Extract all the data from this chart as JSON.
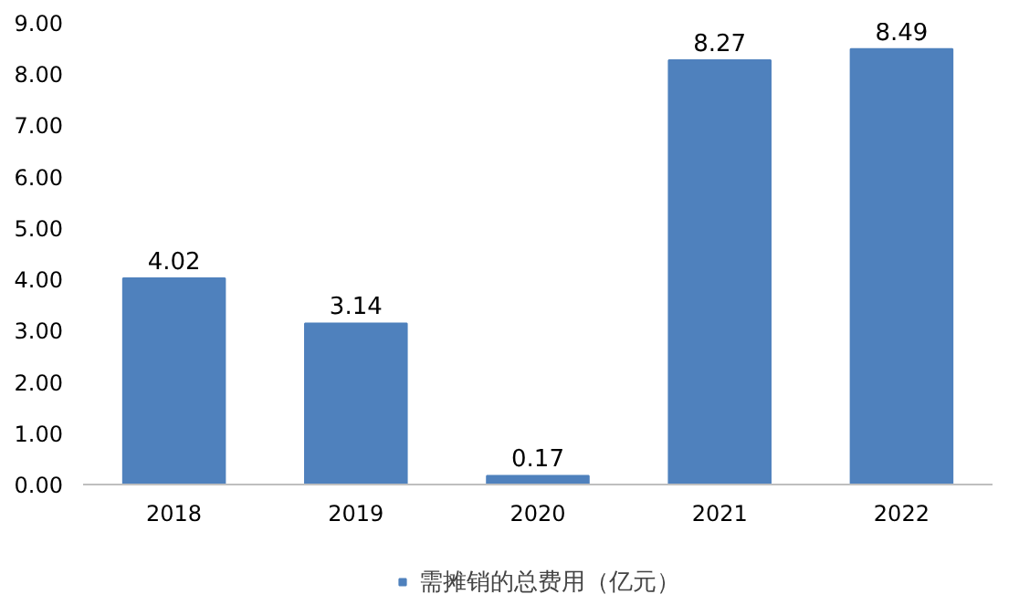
{
  "chart_data": {
    "type": "bar",
    "categories": [
      "2018",
      "2019",
      "2020",
      "2021",
      "2022"
    ],
    "series": [
      {
        "name": "需摊销的总费用（亿元）",
        "color": "#4f81bd",
        "values": [
          4.02,
          3.14,
          0.17,
          8.27,
          8.49
        ]
      }
    ],
    "ylim": [
      0,
      9
    ],
    "yticks": [
      {
        "value": 0,
        "label": "0.00"
      },
      {
        "value": 1,
        "label": "1.00"
      },
      {
        "value": 2,
        "label": "2.00"
      },
      {
        "value": 3,
        "label": "3.00"
      },
      {
        "value": 4,
        "label": "4.00"
      },
      {
        "value": 5,
        "label": "5.00"
      },
      {
        "value": 6,
        "label": "6.00"
      },
      {
        "value": 7,
        "label": "7.00"
      },
      {
        "value": 8,
        "label": "8.00"
      },
      {
        "value": 9,
        "label": "9.00"
      }
    ],
    "data_labels": true,
    "grid": false,
    "legend": "bottom"
  }
}
